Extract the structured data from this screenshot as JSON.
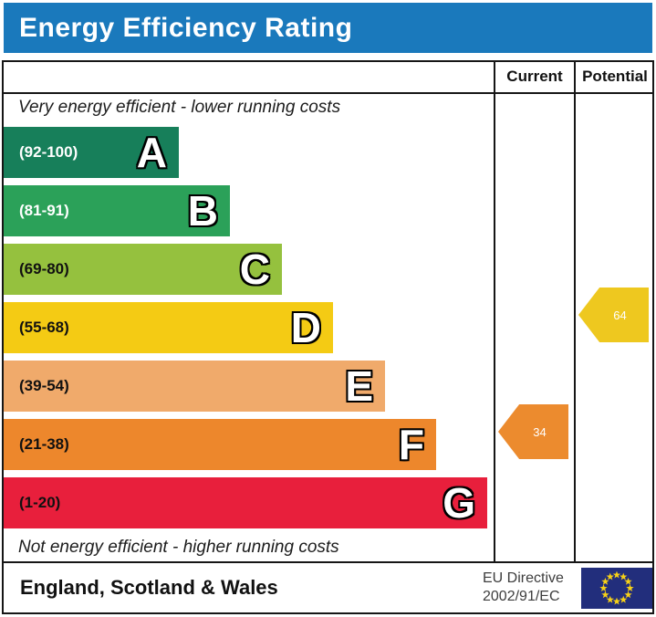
{
  "title": "Energy Efficiency Rating",
  "header": {
    "current": "Current",
    "potential": "Potential"
  },
  "notes": {
    "top": "Very energy efficient - lower running costs",
    "bottom": "Not energy efficient - higher running costs"
  },
  "bands": [
    {
      "letter": "A",
      "range": "(92-100)",
      "color": "#177f5a",
      "label_color": "#ffffff"
    },
    {
      "letter": "B",
      "range": "(81-91)",
      "color": "#2ba159",
      "label_color": "#ffffff"
    },
    {
      "letter": "C",
      "range": "(69-80)",
      "color": "#95c13e",
      "label_color": "#111111"
    },
    {
      "letter": "D",
      "range": "(55-68)",
      "color": "#f4cb14",
      "label_color": "#111111"
    },
    {
      "letter": "E",
      "range": "(39-54)",
      "color": "#f0aa6b",
      "label_color": "#111111"
    },
    {
      "letter": "F",
      "range": "(21-38)",
      "color": "#ed872c",
      "label_color": "#111111"
    },
    {
      "letter": "G",
      "range": "(1-20)",
      "color": "#e81f3c",
      "label_color": "#111111"
    }
  ],
  "markers": {
    "current": {
      "value": "34",
      "color": "#ec8b2e",
      "band_index": 5,
      "band": "F"
    },
    "potential": {
      "value": "64",
      "color": "#eec81f",
      "band_index": 3,
      "band": "D"
    }
  },
  "footer": {
    "region": "England, Scotland & Wales",
    "directive_line1": "EU Directive",
    "directive_line2": "2002/91/EC"
  },
  "colors": {
    "title_bar_blue": "#1a79bc",
    "table_border": "#161616",
    "eu_flag_blue": "#222e7c",
    "eu_star_yellow": "#f7d117"
  },
  "chart_data": {
    "type": "bar",
    "title": "Energy Efficiency Rating",
    "categories": [
      "A",
      "B",
      "C",
      "D",
      "E",
      "F",
      "G"
    ],
    "band_ranges": [
      "92-100",
      "81-91",
      "69-80",
      "55-68",
      "39-54",
      "21-38",
      "1-20"
    ],
    "band_colors": [
      "#177f5a",
      "#2ba159",
      "#95c13e",
      "#f4cb14",
      "#f0aa6b",
      "#ed872c",
      "#e81f3c"
    ],
    "series": [
      {
        "name": "Current",
        "value": 34,
        "band": "F"
      },
      {
        "name": "Potential",
        "value": 64,
        "band": "D"
      }
    ],
    "annotations": [
      "Very energy efficient - lower running costs",
      "Not energy efficient - higher running costs"
    ],
    "region_label": "England, Scotland & Wales",
    "directive_label": "EU Directive 2002/91/EC",
    "legend_position": "top-right-columns",
    "grid": false
  }
}
